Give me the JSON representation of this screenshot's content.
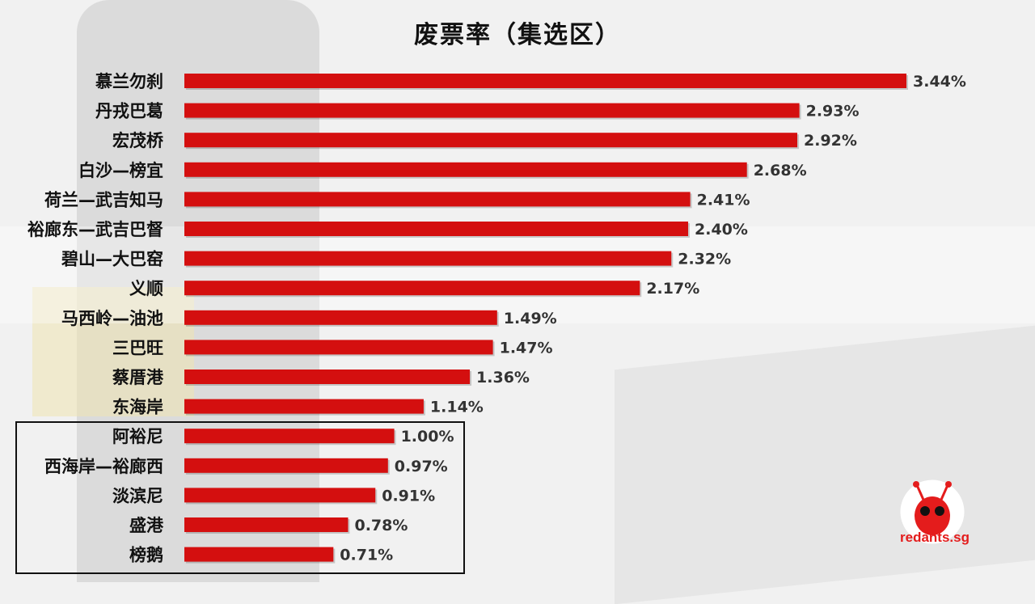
{
  "chart_data": {
    "type": "bar",
    "orientation": "horizontal",
    "title": "废票率（集选区）",
    "categories": [
      "慕兰勿刹",
      "丹戎巴葛",
      "宏茂桥",
      "白沙—榜宜",
      "荷兰—武吉知马",
      "裕廊东—武吉巴督",
      "碧山—大巴窑",
      "义顺",
      "马西岭—油池",
      "三巴旺",
      "蔡厝港",
      "东海岸",
      "阿裕尼",
      "西海岸—裕廊西",
      "淡滨尼",
      "盛港",
      "榜鹅"
    ],
    "values": [
      3.44,
      2.93,
      2.92,
      2.68,
      2.41,
      2.4,
      2.32,
      2.17,
      1.49,
      1.47,
      1.36,
      1.14,
      1.0,
      0.97,
      0.91,
      0.78,
      0.71
    ],
    "value_labels": [
      "3.44%",
      "2.93%",
      "2.92%",
      "2.68%",
      "2.41%",
      "2.40%",
      "2.32%",
      "2.17%",
      "1.49%",
      "1.47%",
      "1.36%",
      "1.14%",
      "1.00%",
      "0.97%",
      "0.91%",
      "0.78%",
      "0.71%"
    ],
    "xlim": [
      0,
      3.44
    ],
    "bar_color": "#d40f0f",
    "grid": false,
    "highlighted_categories": [
      "阿裕尼",
      "西海岸—裕廊西",
      "淡滨尼",
      "盛港",
      "榜鹅"
    ]
  },
  "logo": {
    "text": "redants.sg",
    "icon": "red-ant-icon",
    "color": "#e41c1c"
  }
}
